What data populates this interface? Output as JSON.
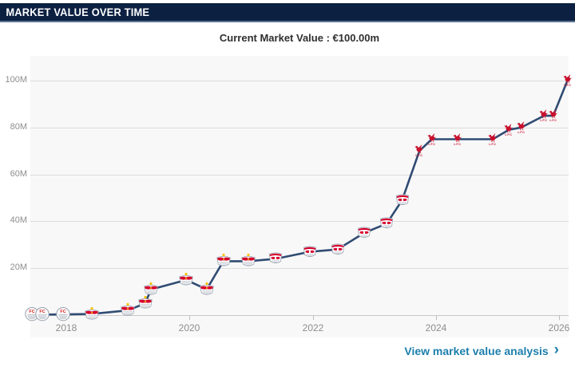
{
  "header": {
    "title": "MARKET VALUE OVER TIME"
  },
  "subheader": {
    "current_value_label": "Current Market Value : €100.00m"
  },
  "footer": {
    "link_label": "View market value analysis",
    "chevron_icon": "›"
  },
  "colors": {
    "header_bg": "#0c2142",
    "header_border": "#5d7493",
    "line": "#304c73",
    "plot_bg": "#f8f8f8",
    "gridline": "#dcdcdc",
    "axis_text": "#8e8e8e",
    "link": "#1d7fac",
    "liverpool_red": "#c8102e",
    "bull_red": "#d5002c",
    "sun_yellow": "#f5c400"
  },
  "chart_data": {
    "type": "line",
    "title": "Market value over time",
    "series_name": "Market value (€m)",
    "xlabel": "",
    "ylabel": "",
    "grid": "horizontal",
    "legend": "none",
    "xlim": [
      2017.42,
      2026.15
    ],
    "ylim": [
      0,
      110
    ],
    "y_ticks": [
      {
        "label": "100M",
        "value": 100
      },
      {
        "label": "80M",
        "value": 80
      },
      {
        "label": "60M",
        "value": 60
      },
      {
        "label": "40M",
        "value": 40
      },
      {
        "label": "20M",
        "value": 20
      }
    ],
    "x_ticks": [
      {
        "label": "2018",
        "value": 2018
      },
      {
        "label": "2020",
        "value": 2020
      },
      {
        "label": "2022",
        "value": 2022
      },
      {
        "label": "2024",
        "value": 2024
      },
      {
        "label": "2026",
        "value": 2026
      }
    ],
    "points": [
      {
        "date": 2017.45,
        "value_m": 0.25,
        "club": "liefering",
        "logo_icon": "fc-liefering-crest-icon"
      },
      {
        "date": 2017.62,
        "value_m": 0.25,
        "club": "liefering",
        "logo_icon": "fc-liefering-crest-icon"
      },
      {
        "date": 2017.95,
        "value_m": 0.3,
        "club": "liefering",
        "logo_icon": "fc-liefering-crest-icon"
      },
      {
        "date": 2018.42,
        "value_m": 0.5,
        "club": "salzburg",
        "logo_icon": "red-bull-salzburg-crest-icon"
      },
      {
        "date": 2019.0,
        "value_m": 2,
        "club": "salzburg",
        "logo_icon": "red-bull-salzburg-crest-icon"
      },
      {
        "date": 2019.28,
        "value_m": 5,
        "club": "salzburg",
        "logo_icon": "red-bull-salzburg-crest-icon"
      },
      {
        "date": 2019.38,
        "value_m": 11,
        "club": "salzburg",
        "logo_icon": "red-bull-salzburg-crest-icon"
      },
      {
        "date": 2019.95,
        "value_m": 15,
        "club": "salzburg",
        "logo_icon": "red-bull-salzburg-crest-icon"
      },
      {
        "date": 2020.28,
        "value_m": 11,
        "club": "salzburg",
        "logo_icon": "red-bull-salzburg-crest-icon"
      },
      {
        "date": 2020.55,
        "value_m": 23,
        "club": "salzburg",
        "logo_icon": "red-bull-salzburg-crest-icon"
      },
      {
        "date": 2020.95,
        "value_m": 23,
        "club": "salzburg",
        "logo_icon": "red-bull-salzburg-crest-icon"
      },
      {
        "date": 2021.4,
        "value_m": 24,
        "club": "leipzig",
        "logo_icon": "rb-leipzig-crest-icon"
      },
      {
        "date": 2021.95,
        "value_m": 27,
        "club": "leipzig",
        "logo_icon": "rb-leipzig-crest-icon"
      },
      {
        "date": 2022.4,
        "value_m": 28,
        "club": "leipzig",
        "logo_icon": "rb-leipzig-crest-icon"
      },
      {
        "date": 2022.83,
        "value_m": 35,
        "club": "leipzig",
        "logo_icon": "rb-leipzig-crest-icon"
      },
      {
        "date": 2023.2,
        "value_m": 39,
        "club": "leipzig",
        "logo_icon": "rb-leipzig-crest-icon"
      },
      {
        "date": 2023.45,
        "value_m": 49,
        "club": "leipzig",
        "logo_icon": "rb-leipzig-crest-icon"
      },
      {
        "date": 2023.73,
        "value_m": 70,
        "club": "liverpool",
        "logo_icon": "liverpool-fc-liver-bird-icon"
      },
      {
        "date": 2023.93,
        "value_m": 75,
        "club": "liverpool",
        "logo_icon": "liverpool-fc-liver-bird-icon"
      },
      {
        "date": 2024.35,
        "value_m": 75,
        "club": "liverpool",
        "logo_icon": "liverpool-fc-liver-bird-icon"
      },
      {
        "date": 2024.92,
        "value_m": 75,
        "club": "liverpool",
        "logo_icon": "liverpool-fc-liver-bird-icon"
      },
      {
        "date": 2025.18,
        "value_m": 79,
        "club": "liverpool",
        "logo_icon": "liverpool-fc-liver-bird-icon"
      },
      {
        "date": 2025.38,
        "value_m": 80,
        "club": "liverpool",
        "logo_icon": "liverpool-fc-liver-bird-icon"
      },
      {
        "date": 2025.75,
        "value_m": 85,
        "club": "liverpool",
        "logo_icon": "liverpool-fc-liver-bird-icon"
      },
      {
        "date": 2025.9,
        "value_m": 85,
        "club": "liverpool",
        "logo_icon": "liverpool-fc-liver-bird-icon"
      },
      {
        "date": 2026.13,
        "value_m": 100,
        "club": "liverpool",
        "logo_icon": "liverpool-fc-liver-bird-icon"
      }
    ]
  }
}
